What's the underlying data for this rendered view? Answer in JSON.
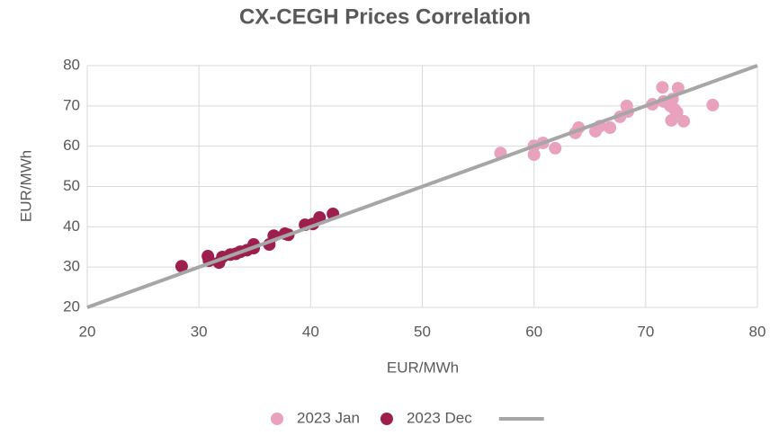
{
  "chart_data": {
    "type": "scatter",
    "title": "CX-CEGH Prices Correlation",
    "x_label": "EUR/MWh",
    "y_label": "EUR/MWh",
    "xlim": [
      20,
      80
    ],
    "xticks": [
      20,
      30,
      40,
      50,
      60,
      70,
      80
    ],
    "ylim": [
      20,
      80
    ],
    "yticks": [
      20,
      30,
      40,
      50,
      60,
      70,
      80
    ],
    "grid": true,
    "legend": "bottom",
    "series": [
      {
        "name": "2023 Jan",
        "color": "#e8a2be",
        "x": [
          57.0,
          60.0,
          60.0,
          60.8,
          61.9,
          63.7,
          64.0,
          65.5,
          65.9,
          66.8,
          67.7,
          68.3,
          68.4,
          70.6,
          71.5,
          71.6,
          72.2,
          72.4,
          72.3,
          72.6,
          72.8,
          72.9,
          73.4,
          76.0
        ],
        "values": [
          58.3,
          60.1,
          57.9,
          60.8,
          59.5,
          63.3,
          64.6,
          63.7,
          65.0,
          64.6,
          67.3,
          70.0,
          68.6,
          70.4,
          74.6,
          71.1,
          70.0,
          71.7,
          66.4,
          69.1,
          68.4,
          74.4,
          66.2,
          70.2
        ]
      },
      {
        "name": "2023 Dec",
        "color": "#9c1f4d",
        "x": [
          28.45,
          30.8,
          30.9,
          31.8,
          32.1,
          32.8,
          33.3,
          33.7,
          34.3,
          34.9,
          34.9,
          36.3,
          36.7,
          38.0,
          37.7,
          39.5,
          40.2,
          40.8,
          42.0
        ],
        "values": [
          30.2,
          32.7,
          31.6,
          31.1,
          32.5,
          33.1,
          33.3,
          33.8,
          34.2,
          35.6,
          34.7,
          35.6,
          37.8,
          38.0,
          38.3,
          40.5,
          40.7,
          42.3,
          43.2
        ]
      },
      {
        "color": "#a6a6a6",
        "line": true,
        "x": [
          20,
          80
        ],
        "values": [
          20,
          80
        ]
      }
    ]
  }
}
